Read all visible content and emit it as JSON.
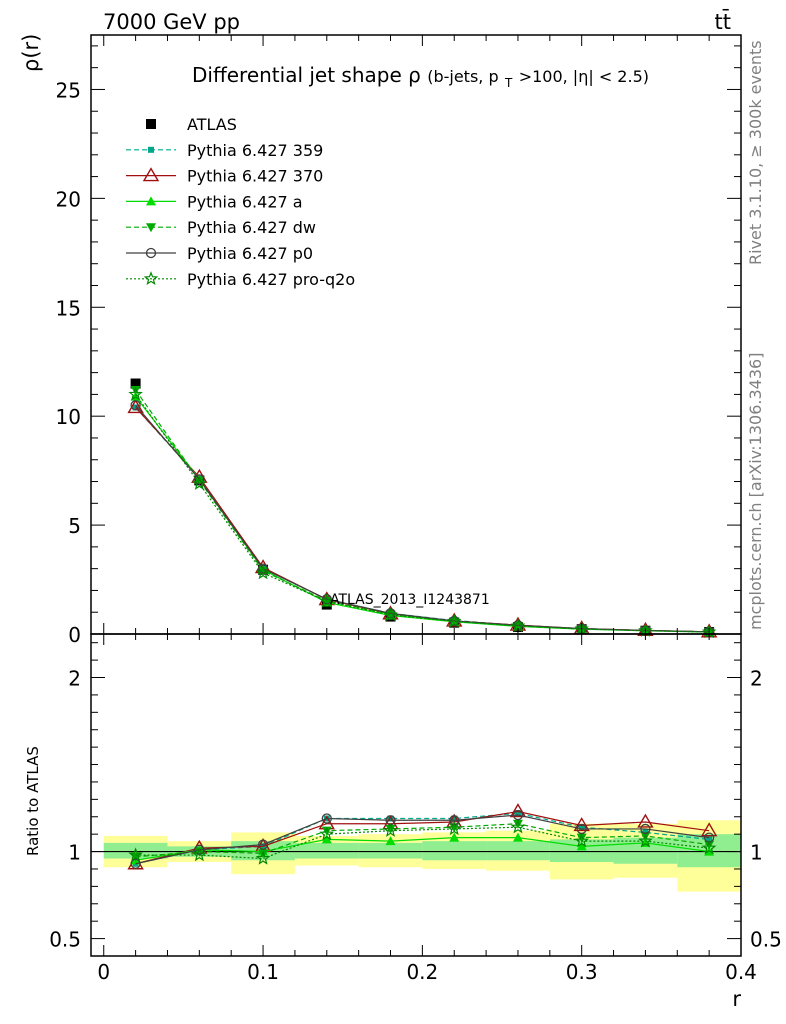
{
  "header": {
    "energy_label": "7000 GeV pp",
    "process_label": "tt̄"
  },
  "side_labels": {
    "rivet": "Rivet 3.1.10, ≥ 300k events",
    "mcplots": "mcplots.cern.ch [arXiv:1306.3436]"
  },
  "chart_data": [
    {
      "type": "line",
      "panel": "main",
      "title_main": "Differential jet shape",
      "title_rho": "ρ",
      "title_paren": "(b-jets, p",
      "title_sub": "T",
      "title_rest": ">100, |η| < 2.5)",
      "ylabel": "ρ(r)",
      "ylim": [
        0,
        27.5
      ],
      "yticks": [
        0,
        5,
        10,
        15,
        20,
        25
      ],
      "ytick_labels": [
        "0",
        "5",
        "10",
        "15",
        "20",
        "25"
      ],
      "xlim": [
        -0.008,
        0.4
      ],
      "x": [
        0.02,
        0.06,
        0.1,
        0.14,
        0.18,
        0.22,
        0.26,
        0.3,
        0.34,
        0.38
      ],
      "watermark": "ATLAS_2013_I1243871",
      "legend_position": "top-left",
      "series": [
        {
          "name": "ATLAS",
          "color": "#000000",
          "marker": "square",
          "values": [
            11.5,
            7.05,
            2.95,
            1.35,
            0.8,
            0.52,
            0.32,
            0.22,
            0.15,
            0.09
          ]
        },
        {
          "name": "Pythia 6.427 359",
          "color": "#00a88a",
          "marker": "small-square",
          "dash": "5,3",
          "values": [
            10.4,
            7.15,
            3.0,
            1.6,
            0.95,
            0.62,
            0.4,
            0.25,
            0.16,
            0.1
          ]
        },
        {
          "name": "Pythia 6.427 370",
          "color": "#a01010",
          "marker": "open-triangle",
          "values": [
            10.4,
            7.2,
            3.05,
            1.58,
            0.93,
            0.6,
            0.41,
            0.25,
            0.17,
            0.1
          ]
        },
        {
          "name": "Pythia 6.427 a",
          "color": "#00dd00",
          "marker": "triangle",
          "values": [
            10.9,
            7.1,
            2.95,
            1.45,
            0.85,
            0.56,
            0.35,
            0.22,
            0.15,
            0.09
          ]
        },
        {
          "name": "Pythia 6.427 dw",
          "color": "#00aa00",
          "marker": "triangle-down",
          "dash": "5,3",
          "values": [
            11.2,
            7.05,
            2.9,
            1.52,
            0.9,
            0.58,
            0.37,
            0.23,
            0.16,
            0.1
          ]
        },
        {
          "name": "Pythia 6.427 p0",
          "color": "#404040",
          "marker": "open-circle",
          "values": [
            10.5,
            7.1,
            3.0,
            1.6,
            0.95,
            0.6,
            0.4,
            0.25,
            0.16,
            0.1
          ]
        },
        {
          "name": "Pythia 6.427 pro-q2o",
          "color": "#008800",
          "marker": "star",
          "dash": "2,2",
          "values": [
            11.0,
            6.9,
            2.8,
            1.5,
            0.88,
            0.58,
            0.37,
            0.23,
            0.15,
            0.09
          ]
        }
      ]
    },
    {
      "type": "line",
      "panel": "ratio",
      "ylabel": "Ratio to ATLAS",
      "xlabel": "r",
      "ylim": [
        0.4,
        2.25
      ],
      "yticks": [
        0.5,
        1,
        2
      ],
      "ytick_labels": [
        "0.5",
        "1",
        "2"
      ],
      "xlim": [
        -0.008,
        0.4
      ],
      "xticks": [
        0,
        0.1,
        0.2,
        0.3,
        0.4
      ],
      "xtick_labels": [
        "0",
        "0.1",
        "0.2",
        "0.3",
        "0.4"
      ],
      "x": [
        0.02,
        0.06,
        0.1,
        0.14,
        0.18,
        0.22,
        0.26,
        0.3,
        0.34,
        0.38
      ],
      "bin_edges": [
        0,
        0.04,
        0.08,
        0.12,
        0.16,
        0.2,
        0.24,
        0.28,
        0.32,
        0.36,
        0.4
      ],
      "band_inner": [
        [
          0.96,
          1.05
        ],
        [
          0.97,
          1.03
        ],
        [
          0.95,
          1.06
        ],
        [
          0.96,
          1.05
        ],
        [
          0.96,
          1.05
        ],
        [
          0.95,
          1.06
        ],
        [
          0.95,
          1.06
        ],
        [
          0.94,
          1.07
        ],
        [
          0.93,
          1.08
        ],
        [
          0.91,
          1.1
        ]
      ],
      "band_outer": [
        [
          0.91,
          1.09
        ],
        [
          0.94,
          1.06
        ],
        [
          0.87,
          1.11
        ],
        [
          0.92,
          1.09
        ],
        [
          0.91,
          1.1
        ],
        [
          0.9,
          1.11
        ],
        [
          0.89,
          1.12
        ],
        [
          0.84,
          1.16
        ],
        [
          0.85,
          1.16
        ],
        [
          0.77,
          1.18
        ]
      ],
      "band_inner_color": "#90ee90",
      "band_outer_color": "#ffff99",
      "series": [
        {
          "name": "Pythia 6.427 359",
          "color": "#00a88a",
          "marker": "small-square",
          "dash": "5,3",
          "values": [
            0.93,
            1.01,
            1.03,
            1.19,
            1.19,
            1.19,
            1.22,
            1.14,
            1.11,
            1.07
          ]
        },
        {
          "name": "Pythia 6.427 370",
          "color": "#a01010",
          "marker": "open-triangle",
          "values": [
            0.93,
            1.02,
            1.03,
            1.16,
            1.16,
            1.17,
            1.23,
            1.15,
            1.17,
            1.12
          ]
        },
        {
          "name": "Pythia 6.427 a",
          "color": "#00dd00",
          "marker": "triangle",
          "values": [
            0.95,
            1.01,
            1.0,
            1.07,
            1.06,
            1.08,
            1.08,
            1.03,
            1.05,
            1.0
          ]
        },
        {
          "name": "Pythia 6.427 dw",
          "color": "#00aa00",
          "marker": "triangle-down",
          "dash": "5,3",
          "values": [
            0.97,
            1.0,
            0.99,
            1.12,
            1.13,
            1.14,
            1.16,
            1.08,
            1.09,
            1.04
          ]
        },
        {
          "name": "Pythia 6.427 p0",
          "color": "#404040",
          "marker": "open-circle",
          "values": [
            0.93,
            1.01,
            1.04,
            1.19,
            1.18,
            1.18,
            1.21,
            1.13,
            1.13,
            1.08
          ]
        },
        {
          "name": "Pythia 6.427 pro-q2o",
          "color": "#008800",
          "marker": "star",
          "dash": "2,2",
          "values": [
            0.98,
            0.98,
            0.96,
            1.1,
            1.12,
            1.13,
            1.14,
            1.06,
            1.06,
            1.02
          ]
        }
      ]
    }
  ]
}
